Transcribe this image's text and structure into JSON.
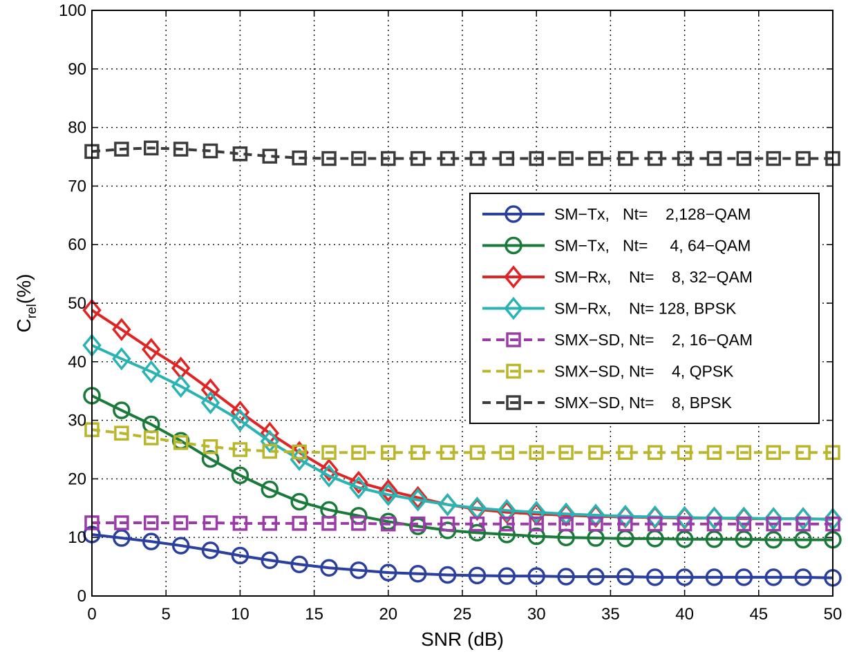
{
  "chart_data": {
    "type": "line",
    "title": "",
    "xlabel": "SNR (dB)",
    "ylabel": {
      "main": "C",
      "sub": "rel",
      "suffix": "(%)"
    },
    "xlim": [
      0,
      50
    ],
    "ylim": [
      0,
      100
    ],
    "xticks": [
      "0",
      "5",
      "10",
      "15",
      "20",
      "25",
      "30",
      "35",
      "40",
      "45",
      "50"
    ],
    "yticks": [
      "0",
      "10",
      "20",
      "30",
      "40",
      "50",
      "60",
      "70",
      "80",
      "90",
      "100"
    ],
    "grid": true,
    "legend_position": "right",
    "x": [
      0,
      2,
      4,
      6,
      8,
      10,
      12,
      14,
      16,
      18,
      20,
      22,
      24,
      26,
      28,
      30,
      32,
      34,
      36,
      38,
      40,
      42,
      44,
      46,
      48,
      50
    ],
    "series": [
      {
        "name": "SM−Tx,   Nt=    2,128−QAM",
        "color": "#2b3f9e",
        "marker": "circle",
        "dashed": false,
        "values": [
          10.5,
          9.9,
          9.3,
          8.6,
          7.8,
          6.9,
          6.1,
          5.4,
          4.8,
          4.4,
          4.0,
          3.8,
          3.6,
          3.5,
          3.4,
          3.4,
          3.3,
          3.3,
          3.3,
          3.2,
          3.2,
          3.2,
          3.2,
          3.2,
          3.2,
          3.1
        ]
      },
      {
        "name": "SM−Tx,   Nt=     4, 64−QAM",
        "color": "#1a7a3a",
        "marker": "circle",
        "dashed": false,
        "values": [
          34.2,
          31.7,
          29.3,
          26.5,
          23.4,
          20.6,
          18.2,
          16.1,
          14.7,
          13.7,
          12.7,
          11.9,
          11.2,
          10.8,
          10.5,
          10.2,
          10.0,
          9.9,
          9.8,
          9.8,
          9.7,
          9.7,
          9.7,
          9.6,
          9.6,
          9.6
        ]
      },
      {
        "name": "SM−Rx,    Nt=    8, 32−QAM",
        "color": "#e02424",
        "marker": "diamond",
        "dashed": false,
        "values": [
          48.8,
          45.5,
          42.1,
          38.9,
          35.2,
          31.4,
          27.8,
          24.5,
          21.5,
          19.4,
          18.0,
          16.8,
          15.6,
          14.8,
          14.3,
          14.0,
          13.8,
          13.6,
          13.5,
          13.4,
          13.3,
          13.3,
          13.2,
          13.2,
          13.2,
          13.1
        ]
      },
      {
        "name": "SM−Rx,    Nt= 128, BPSK",
        "color": "#2ab3b3",
        "marker": "diamond",
        "dashed": false,
        "values": [
          42.8,
          40.5,
          38.3,
          35.8,
          33.0,
          30.0,
          26.4,
          23.3,
          20.5,
          18.5,
          17.3,
          16.4,
          15.6,
          15.0,
          14.6,
          14.3,
          14.0,
          13.8,
          13.6,
          13.5,
          13.4,
          13.3,
          13.3,
          13.2,
          13.2,
          13.1
        ]
      },
      {
        "name": "SMX−SD, Nt=    2, 16−QAM",
        "color": "#9b3aa8",
        "marker": "square",
        "dashed": true,
        "values": [
          12.5,
          12.5,
          12.5,
          12.5,
          12.5,
          12.4,
          12.4,
          12.4,
          12.4,
          12.4,
          12.3,
          12.3,
          12.3,
          12.3,
          12.3,
          12.3,
          12.3,
          12.3,
          12.3,
          12.3,
          12.3,
          12.3,
          12.3,
          12.3,
          12.3,
          12.3
        ]
      },
      {
        "name": "SMX−SD, Nt=    4, QPSK",
        "color": "#b9b62c",
        "marker": "square",
        "dashed": true,
        "values": [
          28.4,
          27.8,
          27.0,
          26.2,
          25.5,
          25.0,
          24.7,
          24.6,
          24.5,
          24.5,
          24.5,
          24.5,
          24.5,
          24.5,
          24.5,
          24.5,
          24.5,
          24.5,
          24.5,
          24.5,
          24.5,
          24.5,
          24.5,
          24.5,
          24.5,
          24.5
        ]
      },
      {
        "name": "SMX−SD, Nt=    8, BPSK",
        "color": "#3b3b3b",
        "marker": "square",
        "dashed": true,
        "values": [
          75.9,
          76.3,
          76.5,
          76.3,
          76.0,
          75.5,
          75.1,
          74.8,
          74.7,
          74.7,
          74.7,
          74.7,
          74.7,
          74.7,
          74.7,
          74.7,
          74.7,
          74.7,
          74.7,
          74.7,
          74.7,
          74.7,
          74.7,
          74.7,
          74.7,
          74.7
        ]
      }
    ]
  }
}
